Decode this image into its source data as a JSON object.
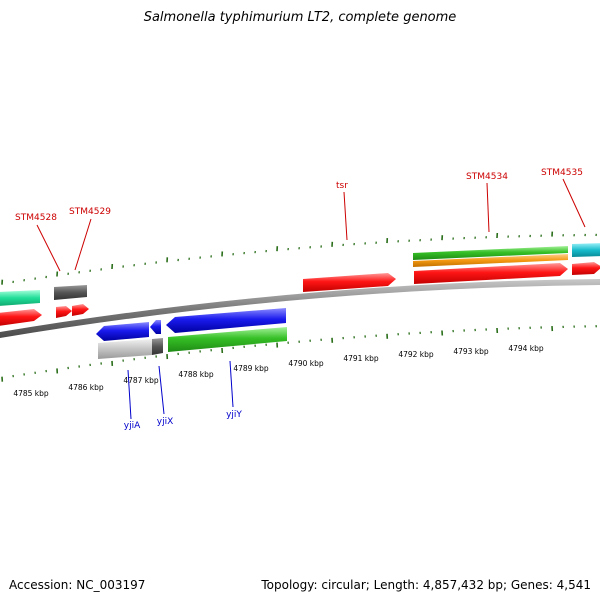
{
  "title": "Salmonella typhimurium LT2, complete genome",
  "footer": {
    "accession": "Accession: NC_003197",
    "topology": "Topology: circular; Length: 4,857,432 bp; Genes: 4,541"
  },
  "colors": {
    "forward_label": "#cc0000",
    "reverse_label": "#0000cc",
    "backbone": "#7a7a7a",
    "tick": "#2a6e1a",
    "red": "#ff1010",
    "green": "#33bb22",
    "orange": "#f59a10",
    "blue": "#1a1aee",
    "teal": "#16b8c8",
    "mint": "#22dd99",
    "dark_gray": "#555555",
    "light_gray": "#bbbbbb"
  },
  "scale_labels": [
    "4785 kbp",
    "4786 kbp",
    "4787 kbp",
    "4788 kbp",
    "4789 kbp",
    "4790 kbp",
    "4791 kbp",
    "4792 kbp",
    "4793 kbp",
    "4794 kbp"
  ],
  "gene_labels": {
    "forward": [
      "STM4528",
      "STM4529",
      "tsr",
      "STM4534",
      "STM4535"
    ],
    "reverse": [
      "yjiA",
      "yjiX",
      "yjiY"
    ]
  }
}
